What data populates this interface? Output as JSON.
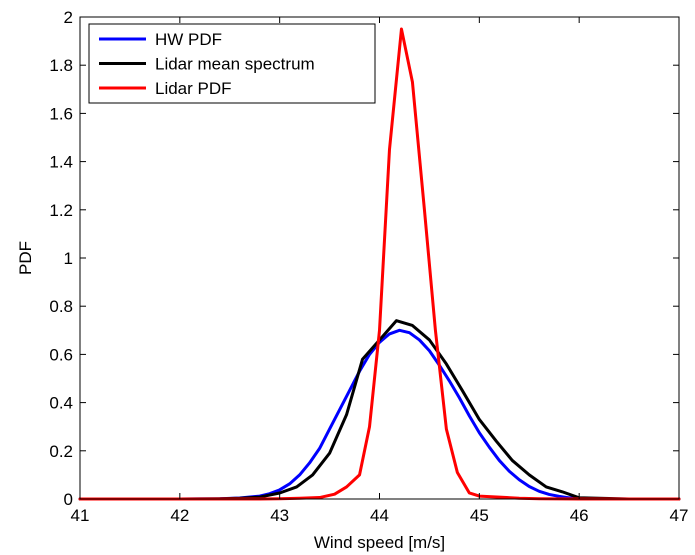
{
  "chart_data": {
    "type": "line",
    "xlabel": "Wind speed [m/s]",
    "ylabel": "PDF",
    "xlim": [
      41,
      47
    ],
    "ylim": [
      0,
      2
    ],
    "xticks": [
      "41",
      "42",
      "43",
      "44",
      "45",
      "46",
      "47"
    ],
    "yticks": [
      "0",
      "0.2",
      "0.4",
      "0.6",
      "0.8",
      "1",
      "1.2",
      "1.4",
      "1.6",
      "1.8",
      "2"
    ],
    "xtick_values": [
      41,
      42,
      43,
      44,
      45,
      46,
      47
    ],
    "ytick_values": [
      0,
      0.2,
      0.4,
      0.6,
      0.8,
      1,
      1.2,
      1.4,
      1.6,
      1.8,
      2
    ],
    "grid": false,
    "legend_position": "top-left",
    "series": [
      {
        "name": "HW PDF",
        "color": "#0000ff",
        "x": [
          41.0,
          42.0,
          42.4,
          42.6,
          42.8,
          42.9,
          43.0,
          43.1,
          43.2,
          43.3,
          43.4,
          43.5,
          43.6,
          43.7,
          43.8,
          43.9,
          44.0,
          44.1,
          44.2,
          44.3,
          44.4,
          44.5,
          44.6,
          44.7,
          44.8,
          44.9,
          45.0,
          45.1,
          45.2,
          45.3,
          45.4,
          45.5,
          45.6,
          45.7,
          45.8,
          45.9,
          46.0,
          46.2,
          46.5,
          47.0
        ],
        "y": [
          0,
          0,
          0.001,
          0.004,
          0.012,
          0.022,
          0.038,
          0.063,
          0.1,
          0.15,
          0.21,
          0.29,
          0.37,
          0.45,
          0.53,
          0.6,
          0.65,
          0.685,
          0.7,
          0.69,
          0.66,
          0.615,
          0.555,
          0.49,
          0.42,
          0.345,
          0.275,
          0.215,
          0.16,
          0.115,
          0.08,
          0.052,
          0.032,
          0.019,
          0.011,
          0.005,
          0.002,
          0.0005,
          0,
          0
        ]
      },
      {
        "name": "Lidar mean spectrum",
        "color": "#000000",
        "x": [
          41.0,
          42.0,
          42.4,
          42.6,
          42.8,
          43.0,
          43.17,
          43.33,
          43.5,
          43.67,
          43.83,
          44.0,
          44.17,
          44.33,
          44.5,
          44.67,
          44.83,
          45.0,
          45.17,
          45.33,
          45.5,
          45.67,
          45.83,
          46.0,
          46.5,
          47.0
        ],
        "y": [
          0,
          0,
          0.001,
          0.003,
          0.008,
          0.025,
          0.05,
          0.1,
          0.19,
          0.35,
          0.58,
          0.66,
          0.74,
          0.72,
          0.66,
          0.56,
          0.45,
          0.33,
          0.24,
          0.16,
          0.1,
          0.05,
          0.03,
          0.005,
          0,
          0
        ]
      },
      {
        "name": "Lidar PDF",
        "color": "#ff0000",
        "x": [
          41.0,
          42.0,
          42.8,
          43.0,
          43.2,
          43.4,
          43.55,
          43.67,
          43.8,
          43.9,
          44.0,
          44.1,
          44.22,
          44.33,
          44.45,
          44.56,
          44.67,
          44.78,
          44.9,
          45.0,
          45.1,
          45.2,
          45.4,
          45.6,
          46.0,
          47.0
        ],
        "y": [
          0,
          0,
          0,
          0.001,
          0.003,
          0.006,
          0.02,
          0.05,
          0.1,
          0.3,
          0.7,
          1.45,
          1.95,
          1.73,
          1.2,
          0.7,
          0.29,
          0.11,
          0.025,
          0.012,
          0.01,
          0.008,
          0.003,
          0.001,
          0,
          0
        ]
      }
    ]
  }
}
